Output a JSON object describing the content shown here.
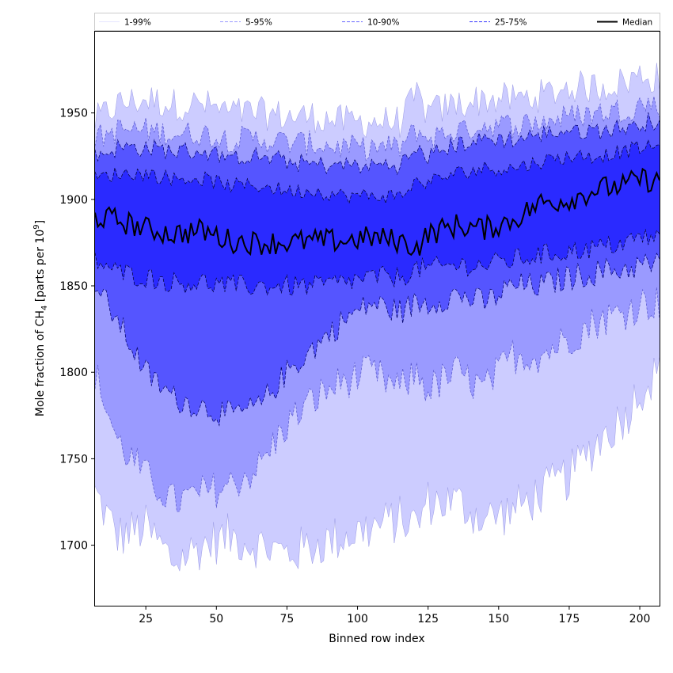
{
  "chart_data": {
    "type": "area",
    "title": "",
    "xlabel": "Binned row index",
    "ylabel_parts": {
      "main": "Mole fraction of CH",
      "sub": "4",
      "mid": " [parts per 10",
      "sup": "9",
      "end": "]"
    },
    "xlim": [
      7,
      207
    ],
    "ylim": [
      1665,
      1997
    ],
    "x_ticks": [
      25,
      50,
      75,
      100,
      125,
      150,
      175,
      200
    ],
    "y_ticks": [
      1700,
      1750,
      1800,
      1850,
      1900,
      1950
    ],
    "legend": {
      "placement": "top",
      "entries": [
        {
          "label": "1-99%",
          "color": "#ccccff",
          "style": "thin-solid"
        },
        {
          "label": "5-95%",
          "color": "#9999ff",
          "style": "thin-dashed"
        },
        {
          "label": "10-90%",
          "color": "#6666ff",
          "style": "dashed"
        },
        {
          "label": "25-75%",
          "color": "#3333ff",
          "style": "dashed"
        },
        {
          "label": "Median",
          "color": "#000000",
          "style": "solid"
        }
      ]
    },
    "band_colors": [
      "#ccccff",
      "#9a9aff",
      "#5555ff",
      "#2a2aff"
    ],
    "band_edge_colors": [
      "#8888dd",
      "#5555cc",
      "#000066",
      "#000033"
    ],
    "median_color": "#000000",
    "x_step": 1,
    "x_start": 7,
    "x_end": 207,
    "anchors_x": [
      7,
      15,
      25,
      35,
      45,
      55,
      65,
      75,
      85,
      95,
      105,
      115,
      121,
      125,
      135,
      145,
      155,
      165,
      175,
      185,
      195,
      200,
      207
    ],
    "series": [
      {
        "name": "1-99%",
        "lower": [
          1730,
          1705,
          1710,
          1690,
          1700,
          1705,
          1700,
          1695,
          1700,
          1705,
          1710,
          1715,
          1712,
          1725,
          1725,
          1715,
          1720,
          1730,
          1740,
          1760,
          1775,
          1790,
          1800
        ],
        "upper": [
          1945,
          1955,
          1958,
          1955,
          1955,
          1950,
          1950,
          1948,
          1948,
          1945,
          1945,
          1945,
          1960,
          1950,
          1955,
          1958,
          1958,
          1960,
          1965,
          1965,
          1968,
          1972,
          1970
        ]
      },
      {
        "name": "5-95%",
        "lower": [
          1800,
          1760,
          1740,
          1725,
          1730,
          1735,
          1745,
          1770,
          1785,
          1795,
          1800,
          1790,
          1800,
          1790,
          1800,
          1790,
          1810,
          1810,
          1820,
          1830,
          1835,
          1840,
          1840
        ],
        "upper": [
          1935,
          1940,
          1940,
          1938,
          1938,
          1935,
          1935,
          1933,
          1932,
          1930,
          1930,
          1930,
          1940,
          1935,
          1940,
          1943,
          1943,
          1945,
          1948,
          1950,
          1952,
          1955,
          1955
        ]
      },
      {
        "name": "10-90%",
        "lower": [
          1850,
          1830,
          1800,
          1785,
          1780,
          1775,
          1780,
          1800,
          1815,
          1830,
          1840,
          1835,
          1840,
          1840,
          1845,
          1840,
          1850,
          1850,
          1855,
          1858,
          1860,
          1862,
          1862
        ],
        "upper": [
          1925,
          1930,
          1930,
          1928,
          1928,
          1925,
          1925,
          1922,
          1920,
          1920,
          1920,
          1920,
          1928,
          1925,
          1932,
          1935,
          1935,
          1938,
          1940,
          1940,
          1942,
          1945,
          1945
        ]
      },
      {
        "name": "25-75%",
        "lower": [
          1865,
          1858,
          1855,
          1852,
          1852,
          1850,
          1850,
          1850,
          1850,
          1852,
          1855,
          1855,
          1860,
          1860,
          1862,
          1862,
          1865,
          1868,
          1870,
          1872,
          1875,
          1878,
          1878
        ],
        "upper": [
          1912,
          1915,
          1915,
          1912,
          1912,
          1908,
          1908,
          1905,
          1905,
          1902,
          1902,
          1902,
          1910,
          1910,
          1915,
          1918,
          1918,
          1922,
          1925,
          1925,
          1928,
          1930,
          1930
        ]
      },
      {
        "name": "Median",
        "values": [
          1890,
          1888,
          1883,
          1880,
          1882,
          1876,
          1875,
          1875,
          1876,
          1876,
          1878,
          1876,
          1872,
          1880,
          1885,
          1883,
          1888,
          1898,
          1900,
          1906,
          1908,
          1912,
          1910
        ]
      }
    ],
    "noise": {
      "outer": 14,
      "mid": 11,
      "inner": 8,
      "median": 7
    },
    "grid": false
  }
}
